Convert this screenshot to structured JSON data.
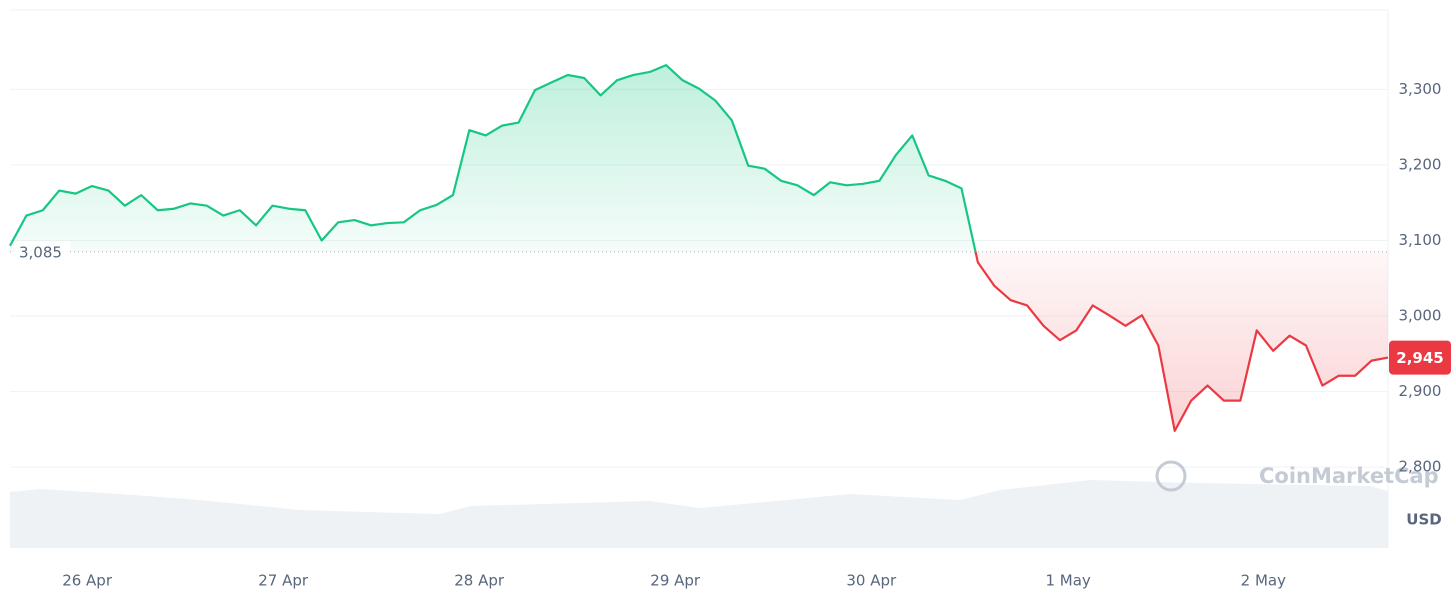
{
  "chart_data": {
    "type": "line",
    "watermark": "CoinMarketCap",
    "currency": "USD",
    "values": [
      3093,
      3133,
      3140,
      3166,
      3162,
      3172,
      3166,
      3146,
      3160,
      3140,
      3142,
      3149,
      3146,
      3133,
      3140,
      3120,
      3146,
      3142,
      3140,
      3100,
      3124,
      3127,
      3120,
      3123,
      3124,
      3140,
      3147,
      3160,
      3246,
      3239,
      3252,
      3256,
      3299,
      3309,
      3319,
      3315,
      3292,
      3312,
      3319,
      3323,
      3332,
      3312,
      3301,
      3285,
      3259,
      3199,
      3195,
      3179,
      3173,
      3160,
      3177,
      3173,
      3175,
      3179,
      3213,
      3239,
      3186,
      3179,
      3169,
      3071,
      3040,
      3021,
      3014,
      2987,
      2968,
      2981,
      3014,
      3001,
      2987,
      3001,
      2961,
      2848,
      2888,
      2908,
      2888,
      2888,
      2981,
      2954,
      2974,
      2961,
      2908,
      2921,
      2921,
      2941,
      2945
    ],
    "xlim": [
      0,
      84
    ],
    "xticks": [
      {
        "value": 4.7,
        "label": "26 Apr"
      },
      {
        "value": 16.65,
        "label": "27 Apr"
      },
      {
        "value": 28.6,
        "label": "28 Apr"
      },
      {
        "value": 40.55,
        "label": "29 Apr"
      },
      {
        "value": 52.5,
        "label": "30 Apr"
      },
      {
        "value": 64.5,
        "label": "1 May"
      },
      {
        "value": 76.4,
        "label": "2 May"
      }
    ],
    "ylim": [
      2693,
      3405
    ],
    "yticks": [
      {
        "value": 2800,
        "label": "2,800"
      },
      {
        "value": 2900,
        "label": "2,900"
      },
      {
        "value": 3000,
        "label": "3,000"
      },
      {
        "value": 3100,
        "label": "3,100"
      },
      {
        "value": 3200,
        "label": "3,200"
      },
      {
        "value": 3300,
        "label": "3,300"
      }
    ],
    "baseline": {
      "value": 3085,
      "label": "3,085"
    },
    "current_price": {
      "value": 2945,
      "label": "2,945"
    },
    "up_color": "#16c784",
    "down_color": "#ea3943",
    "grid": true
  }
}
